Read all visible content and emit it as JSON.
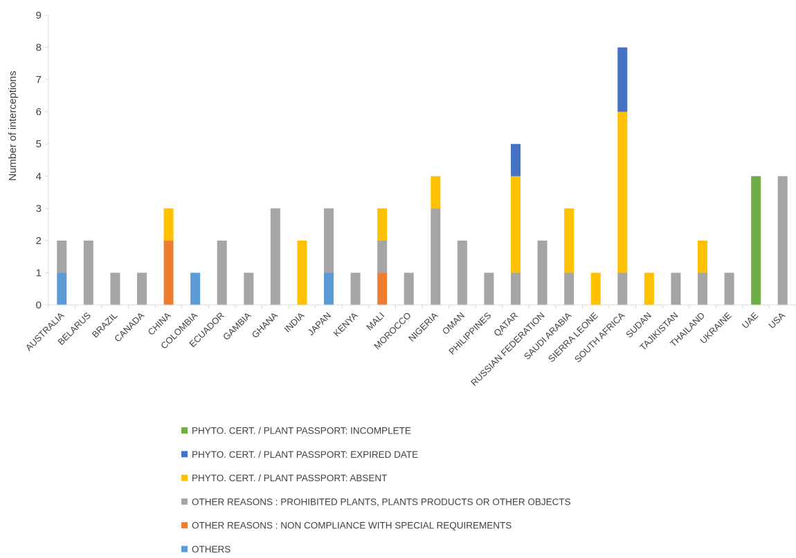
{
  "chart_data": {
    "type": "bar",
    "stacked": true,
    "title": "",
    "xlabel": "",
    "ylabel": "Number of interceptions",
    "ylim": [
      0,
      9
    ],
    "yticks": [
      0,
      1,
      2,
      3,
      4,
      5,
      6,
      7,
      8,
      9
    ],
    "grid": false,
    "legend_position": "bottom",
    "categories": [
      "AUSTRALIA",
      "BELARUS",
      "BRAZIL",
      "CANADA",
      "CHINA",
      "COLOMBIA",
      "ECUADOR",
      "GAMBIA",
      "GHANA",
      "INDIA",
      "JAPAN",
      "KENYA",
      "MALI",
      "MOROCCO",
      "NIGERIA",
      "OMAN",
      "PHILIPPINES",
      "QATAR",
      "RUSSIAN FEDERATION",
      "SAUDI ARABIA",
      "SIERRA LEONE",
      "SOUTH AFRICA",
      "SUDAN",
      "TAJIKISTAN",
      "THAILAND",
      "UKRAINE",
      "UAE",
      "USA"
    ],
    "series": [
      {
        "name": "OTHERS",
        "color": "#5B9BD5",
        "values": [
          1,
          0,
          0,
          0,
          0,
          1,
          0,
          0,
          0,
          0,
          1,
          0,
          0,
          0,
          0,
          0,
          0,
          0,
          0,
          0,
          0,
          0,
          0,
          0,
          0,
          0,
          0,
          0
        ]
      },
      {
        "name": "OTHER REASONS : NON COMPLIANCE WITH SPECIAL REQUIREMENTS",
        "color": "#ED7D31",
        "values": [
          0,
          0,
          0,
          0,
          2,
          0,
          0,
          0,
          0,
          0,
          0,
          0,
          1,
          0,
          0,
          0,
          0,
          0,
          0,
          0,
          0,
          0,
          0,
          0,
          0,
          0,
          0,
          0
        ]
      },
      {
        "name": "OTHER REASONS : PROHIBITED PLANTS, PLANTS PRODUCTS OR OTHER OBJECTS",
        "color": "#A5A5A5",
        "values": [
          1,
          2,
          1,
          1,
          0,
          0,
          2,
          1,
          3,
          0,
          2,
          1,
          1,
          1,
          3,
          2,
          1,
          1,
          2,
          1,
          0,
          1,
          0,
          1,
          1,
          1,
          0,
          4
        ]
      },
      {
        "name": "PHYTO. CERT. / PLANT PASSPORT: ABSENT",
        "color": "#FFC000",
        "values": [
          0,
          0,
          0,
          0,
          1,
          0,
          0,
          0,
          0,
          2,
          0,
          0,
          1,
          0,
          1,
          0,
          0,
          3,
          0,
          2,
          1,
          5,
          1,
          0,
          1,
          0,
          0,
          0
        ]
      },
      {
        "name": "PHYTO. CERT. / PLANT PASSPORT: EXPIRED DATE",
        "color": "#4472C4",
        "values": [
          0,
          0,
          0,
          0,
          0,
          0,
          0,
          0,
          0,
          0,
          0,
          0,
          0,
          0,
          0,
          0,
          0,
          1,
          0,
          0,
          0,
          2,
          0,
          0,
          0,
          0,
          0,
          0
        ]
      },
      {
        "name": "PHYTO. CERT. / PLANT PASSPORT: INCOMPLETE",
        "color": "#70AD47",
        "values": [
          0,
          0,
          0,
          0,
          0,
          0,
          0,
          0,
          0,
          0,
          0,
          0,
          0,
          0,
          0,
          0,
          0,
          0,
          0,
          0,
          0,
          0,
          0,
          0,
          0,
          0,
          4,
          0
        ]
      }
    ],
    "legend_order": [
      "PHYTO. CERT. / PLANT PASSPORT: INCOMPLETE",
      "PHYTO. CERT. / PLANT PASSPORT: EXPIRED DATE",
      "PHYTO. CERT. / PLANT PASSPORT: ABSENT",
      "OTHER REASONS : PROHIBITED PLANTS, PLANTS PRODUCTS OR OTHER OBJECTS",
      "OTHER REASONS : NON COMPLIANCE WITH SPECIAL REQUIREMENTS",
      "OTHERS"
    ]
  }
}
